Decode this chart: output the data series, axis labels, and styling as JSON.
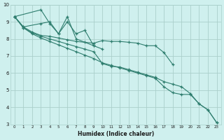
{
  "xlabel": "Humidex (Indice chaleur)",
  "bg_color": "#cff0ee",
  "grid_color": "#aacfcb",
  "line_color": "#2e7d6e",
  "xlim": [
    -0.5,
    23.5
  ],
  "ylim": [
    3,
    10
  ],
  "xtick_labels": [
    "0",
    "1",
    "2",
    "3",
    "4",
    "5",
    "6",
    "7",
    "8",
    "9",
    "10",
    "11",
    "12",
    "13",
    "14",
    "15",
    "16",
    "17",
    "18",
    "19",
    "20",
    "21",
    "22",
    "23"
  ],
  "ytick_labels": [
    "3",
    "4",
    "5",
    "6",
    "7",
    "8",
    "9",
    "10"
  ],
  "ytick_vals": [
    3,
    4,
    5,
    6,
    7,
    8,
    9,
    10
  ],
  "series": [
    {
      "xy": [
        [
          0,
          9.3
        ],
        [
          1,
          8.7
        ],
        [
          3,
          8.9
        ],
        [
          4,
          9.0
        ],
        [
          5,
          8.3
        ],
        [
          6,
          9.3
        ],
        [
          7,
          8.0
        ],
        [
          9,
          7.6
        ],
        [
          10,
          7.4
        ]
      ]
    },
    {
      "xy": [
        [
          0,
          9.3
        ],
        [
          3,
          9.7
        ],
        [
          4,
          8.9
        ],
        [
          5,
          8.3
        ],
        [
          6,
          9.0
        ],
        [
          7,
          8.3
        ],
        [
          8,
          8.5
        ],
        [
          9,
          7.6
        ]
      ]
    },
    {
      "xy": [
        [
          0,
          9.3
        ],
        [
          1,
          8.7
        ],
        [
          2,
          8.4
        ],
        [
          3,
          8.2
        ],
        [
          4,
          8.15
        ],
        [
          5,
          8.05
        ],
        [
          6,
          7.95
        ],
        [
          7,
          7.85
        ],
        [
          8,
          7.8
        ],
        [
          9,
          7.75
        ],
        [
          10,
          7.9
        ],
        [
          11,
          7.85
        ],
        [
          12,
          7.85
        ],
        [
          13,
          7.8
        ],
        [
          14,
          7.75
        ],
        [
          15,
          7.6
        ],
        [
          16,
          7.6
        ],
        [
          17,
          7.2
        ],
        [
          18,
          6.5
        ]
      ]
    },
    {
      "xy": [
        [
          0,
          9.3
        ],
        [
          1,
          8.65
        ],
        [
          2,
          8.35
        ],
        [
          3,
          8.15
        ],
        [
          4,
          8.0
        ],
        [
          5,
          7.85
        ],
        [
          6,
          7.7
        ],
        [
          7,
          7.55
        ],
        [
          8,
          7.4
        ],
        [
          9,
          7.25
        ],
        [
          10,
          6.55
        ],
        [
          11,
          6.4
        ],
        [
          12,
          6.35
        ],
        [
          13,
          6.2
        ],
        [
          14,
          6.05
        ],
        [
          15,
          5.9
        ],
        [
          16,
          5.75
        ],
        [
          17,
          5.5
        ],
        [
          18,
          5.35
        ],
        [
          19,
          5.2
        ],
        [
          20,
          4.8
        ],
        [
          21,
          4.2
        ],
        [
          22,
          3.85
        ],
        [
          23,
          3.1
        ]
      ]
    },
    {
      "xy": [
        [
          0,
          9.3
        ],
        [
          1,
          8.65
        ],
        [
          2,
          8.3
        ],
        [
          3,
          8.05
        ],
        [
          4,
          7.85
        ],
        [
          5,
          7.65
        ],
        [
          6,
          7.45
        ],
        [
          7,
          7.25
        ],
        [
          8,
          7.05
        ],
        [
          9,
          6.85
        ],
        [
          10,
          6.6
        ],
        [
          11,
          6.45
        ],
        [
          12,
          6.3
        ],
        [
          13,
          6.15
        ],
        [
          14,
          6.0
        ],
        [
          15,
          5.85
        ],
        [
          16,
          5.7
        ],
        [
          17,
          5.2
        ],
        [
          18,
          4.85
        ],
        [
          19,
          4.75
        ],
        [
          20,
          4.75
        ],
        [
          21,
          4.2
        ],
        [
          22,
          3.85
        ],
        [
          23,
          3.1
        ]
      ]
    }
  ]
}
